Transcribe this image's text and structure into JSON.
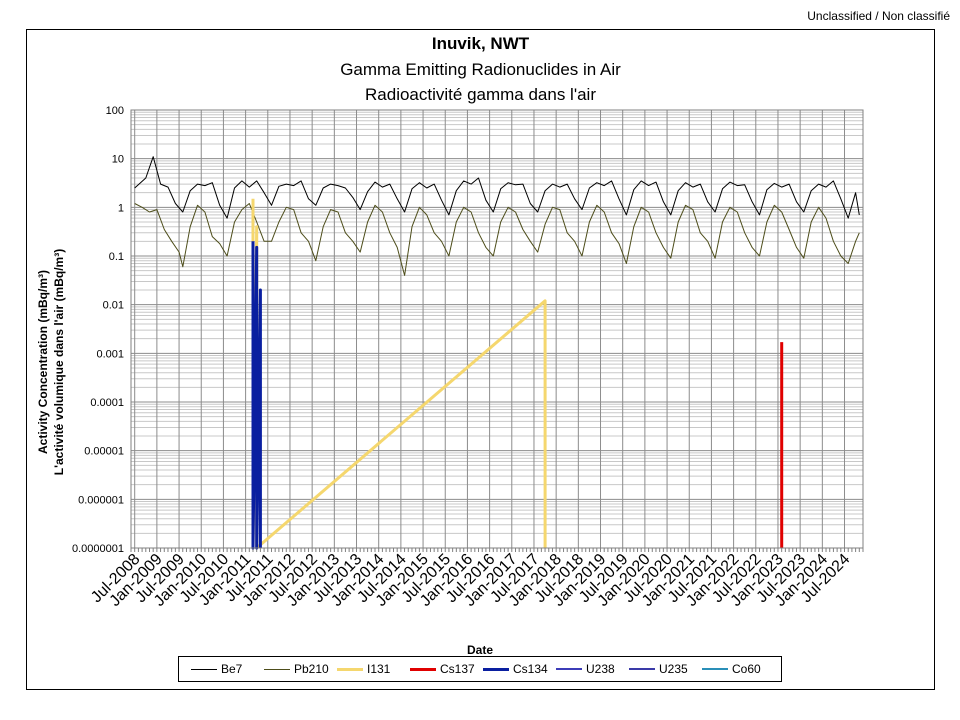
{
  "classification": "Unclassified / Non classifié",
  "chart_data": {
    "type": "line",
    "title": "Inuvik, NWT",
    "subtitle_en": "Gamma Emitting Radionuclides in Air",
    "subtitle_fr": "Radioactivité gamma dans l'air",
    "xlabel": "Date",
    "ylabel_en": "Activity Concentration  (mBq/m³)",
    "ylabel_fr": "L'activité volumique dans l'air (mBq/m³)",
    "y_scale": "log",
    "ylim": [
      1e-07,
      100
    ],
    "y_tick_labels": [
      "100",
      "10",
      "1",
      "0.1",
      "0.01",
      "0.001",
      "0.0001",
      "0.00001",
      "0.000001",
      "0.0000001"
    ],
    "x_range": [
      "2008-06",
      "2024-12"
    ],
    "x_tick_labels": [
      "Jul-2008",
      "Jan-2009",
      "Jul-2009",
      "Jan-2010",
      "Jul-2010",
      "Jan-2011",
      "Jul-2011",
      "Jan-2012",
      "Jul-2012",
      "Jan-2013",
      "Jul-2013",
      "Jan-2014",
      "Jul-2014",
      "Jan-2015",
      "Jul-2015",
      "Jan-2016",
      "Jul-2016",
      "Jan-2017",
      "Jul-2017",
      "Jan-2018",
      "Jul-2018",
      "Jan-2019",
      "Jul-2019",
      "Jan-2020",
      "Jul-2020",
      "Jan-2021",
      "Jul-2021",
      "Jan-2022",
      "Jul-2022",
      "Jan-2023",
      "Jul-2023",
      "Jan-2024",
      "Jul-2024"
    ],
    "grid": true,
    "legend_position": "bottom",
    "series": [
      {
        "name": "Be7",
        "color": "#000000",
        "width": 1,
        "points": [
          [
            "2008-07",
            2.5
          ],
          [
            "2008-10",
            4
          ],
          [
            "2008-12",
            11
          ],
          [
            "2009-02",
            3
          ],
          [
            "2009-04",
            2.6
          ],
          [
            "2009-06",
            1.2
          ],
          [
            "2009-08",
            0.8
          ],
          [
            "2009-10",
            2.2
          ],
          [
            "2009-12",
            3
          ],
          [
            "2010-02",
            2.8
          ],
          [
            "2010-04",
            3.2
          ],
          [
            "2010-06",
            1.1
          ],
          [
            "2010-08",
            0.6
          ],
          [
            "2010-10",
            2.5
          ],
          [
            "2010-12",
            3.5
          ],
          [
            "2011-02",
            2.6
          ],
          [
            "2011-04",
            3.5
          ],
          [
            "2011-06",
            2
          ],
          [
            "2011-08",
            1.1
          ],
          [
            "2011-10",
            2.7
          ],
          [
            "2011-12",
            3
          ],
          [
            "2012-02",
            2.8
          ],
          [
            "2012-04",
            3.5
          ],
          [
            "2012-06",
            1.5
          ],
          [
            "2012-08",
            1.1
          ],
          [
            "2012-10",
            2.5
          ],
          [
            "2012-12",
            3
          ],
          [
            "2013-02",
            2.8
          ],
          [
            "2013-04",
            2.5
          ],
          [
            "2013-06",
            1.6
          ],
          [
            "2013-08",
            0.9
          ],
          [
            "2013-10",
            2.1
          ],
          [
            "2013-12",
            3.3
          ],
          [
            "2014-02",
            2.6
          ],
          [
            "2014-04",
            3
          ],
          [
            "2014-06",
            1.5
          ],
          [
            "2014-08",
            0.8
          ],
          [
            "2014-10",
            2.4
          ],
          [
            "2014-12",
            3.2
          ],
          [
            "2015-02",
            2.5
          ],
          [
            "2015-04",
            3
          ],
          [
            "2015-06",
            1.4
          ],
          [
            "2015-08",
            0.7
          ],
          [
            "2015-10",
            2.2
          ],
          [
            "2015-12",
            3.5
          ],
          [
            "2016-02",
            3
          ],
          [
            "2016-04",
            4
          ],
          [
            "2016-06",
            1.4
          ],
          [
            "2016-08",
            0.8
          ],
          [
            "2016-10",
            2.4
          ],
          [
            "2016-12",
            3.2
          ],
          [
            "2017-02",
            2.9
          ],
          [
            "2017-04",
            3
          ],
          [
            "2017-06",
            1.2
          ],
          [
            "2017-08",
            0.8
          ],
          [
            "2017-10",
            2.2
          ],
          [
            "2017-12",
            3
          ],
          [
            "2018-02",
            2.6
          ],
          [
            "2018-04",
            3
          ],
          [
            "2018-06",
            1.5
          ],
          [
            "2018-08",
            0.9
          ],
          [
            "2018-10",
            2.5
          ],
          [
            "2018-12",
            3.2
          ],
          [
            "2019-02",
            2.8
          ],
          [
            "2019-04",
            3.5
          ],
          [
            "2019-06",
            1.5
          ],
          [
            "2019-08",
            0.7
          ],
          [
            "2019-10",
            2.3
          ],
          [
            "2019-12",
            3.5
          ],
          [
            "2020-02",
            2.8
          ],
          [
            "2020-04",
            3.3
          ],
          [
            "2020-06",
            1.3
          ],
          [
            "2020-08",
            0.7
          ],
          [
            "2020-10",
            2.2
          ],
          [
            "2020-12",
            3.2
          ],
          [
            "2021-02",
            2.6
          ],
          [
            "2021-04",
            3
          ],
          [
            "2021-06",
            1.3
          ],
          [
            "2021-08",
            0.8
          ],
          [
            "2021-10",
            2.4
          ],
          [
            "2021-12",
            3.3
          ],
          [
            "2022-02",
            2.8
          ],
          [
            "2022-04",
            2.9
          ],
          [
            "2022-06",
            1.3
          ],
          [
            "2022-08",
            0.7
          ],
          [
            "2022-10",
            2.3
          ],
          [
            "2022-12",
            3.1
          ],
          [
            "2023-02",
            2.6
          ],
          [
            "2023-04",
            3
          ],
          [
            "2023-06",
            1.3
          ],
          [
            "2023-08",
            0.8
          ],
          [
            "2023-10",
            2.2
          ],
          [
            "2023-12",
            3
          ],
          [
            "2024-02",
            2.6
          ],
          [
            "2024-04",
            3.5
          ],
          [
            "2024-06",
            1.5
          ],
          [
            "2024-08",
            0.6
          ],
          [
            "2024-10",
            2
          ],
          [
            "2024-11",
            0.7
          ]
        ]
      },
      {
        "name": "Pb210",
        "color": "#4d4d1a",
        "width": 1,
        "points": [
          [
            "2008-07",
            1.2
          ],
          [
            "2008-09",
            1
          ],
          [
            "2008-11",
            0.8
          ],
          [
            "2009-01",
            0.9
          ],
          [
            "2009-03",
            0.35
          ],
          [
            "2009-05",
            0.2
          ],
          [
            "2009-07",
            0.12
          ],
          [
            "2009-08",
            0.06
          ],
          [
            "2009-10",
            0.4
          ],
          [
            "2009-12",
            1.1
          ],
          [
            "2010-02",
            0.8
          ],
          [
            "2010-04",
            0.25
          ],
          [
            "2010-06",
            0.18
          ],
          [
            "2010-08",
            0.1
          ],
          [
            "2010-10",
            0.5
          ],
          [
            "2010-12",
            0.9
          ],
          [
            "2011-02",
            1.2
          ],
          [
            "2011-04",
            0.5
          ],
          [
            "2011-06",
            0.2
          ],
          [
            "2011-08",
            0.2
          ],
          [
            "2011-10",
            0.5
          ],
          [
            "2011-12",
            1
          ],
          [
            "2012-02",
            0.9
          ],
          [
            "2012-04",
            0.3
          ],
          [
            "2012-06",
            0.2
          ],
          [
            "2012-08",
            0.08
          ],
          [
            "2012-10",
            0.4
          ],
          [
            "2012-12",
            0.9
          ],
          [
            "2013-02",
            0.8
          ],
          [
            "2013-04",
            0.3
          ],
          [
            "2013-06",
            0.2
          ],
          [
            "2013-08",
            0.12
          ],
          [
            "2013-10",
            0.5
          ],
          [
            "2013-12",
            1.1
          ],
          [
            "2014-02",
            0.8
          ],
          [
            "2014-04",
            0.3
          ],
          [
            "2014-06",
            0.15
          ],
          [
            "2014-08",
            0.04
          ],
          [
            "2014-10",
            0.4
          ],
          [
            "2014-12",
            1
          ],
          [
            "2015-02",
            0.7
          ],
          [
            "2015-04",
            0.3
          ],
          [
            "2015-06",
            0.2
          ],
          [
            "2015-08",
            0.1
          ],
          [
            "2015-10",
            0.5
          ],
          [
            "2015-12",
            1
          ],
          [
            "2016-02",
            0.8
          ],
          [
            "2016-04",
            0.3
          ],
          [
            "2016-06",
            0.15
          ],
          [
            "2016-08",
            0.1
          ],
          [
            "2016-10",
            0.5
          ],
          [
            "2016-12",
            1
          ],
          [
            "2017-02",
            0.8
          ],
          [
            "2017-04",
            0.35
          ],
          [
            "2017-06",
            0.2
          ],
          [
            "2017-08",
            0.12
          ],
          [
            "2017-10",
            0.45
          ],
          [
            "2017-12",
            1
          ],
          [
            "2018-02",
            0.9
          ],
          [
            "2018-04",
            0.3
          ],
          [
            "2018-06",
            0.2
          ],
          [
            "2018-08",
            0.1
          ],
          [
            "2018-10",
            0.5
          ],
          [
            "2018-12",
            1.1
          ],
          [
            "2019-02",
            0.8
          ],
          [
            "2019-04",
            0.3
          ],
          [
            "2019-06",
            0.18
          ],
          [
            "2019-08",
            0.07
          ],
          [
            "2019-10",
            0.4
          ],
          [
            "2019-12",
            1
          ],
          [
            "2020-02",
            0.8
          ],
          [
            "2020-04",
            0.3
          ],
          [
            "2020-06",
            0.15
          ],
          [
            "2020-08",
            0.09
          ],
          [
            "2020-10",
            0.5
          ],
          [
            "2020-12",
            1.1
          ],
          [
            "2021-02",
            0.9
          ],
          [
            "2021-04",
            0.3
          ],
          [
            "2021-06",
            0.2
          ],
          [
            "2021-08",
            0.09
          ],
          [
            "2021-10",
            0.5
          ],
          [
            "2021-12",
            1
          ],
          [
            "2022-02",
            0.8
          ],
          [
            "2022-04",
            0.3
          ],
          [
            "2022-06",
            0.15
          ],
          [
            "2022-08",
            0.1
          ],
          [
            "2022-10",
            0.5
          ],
          [
            "2022-12",
            1.1
          ],
          [
            "2023-02",
            0.8
          ],
          [
            "2023-04",
            0.35
          ],
          [
            "2023-06",
            0.15
          ],
          [
            "2023-08",
            0.09
          ],
          [
            "2023-10",
            0.5
          ],
          [
            "2023-12",
            1
          ],
          [
            "2024-02",
            0.6
          ],
          [
            "2024-04",
            0.2
          ],
          [
            "2024-06",
            0.1
          ],
          [
            "2024-08",
            0.07
          ],
          [
            "2024-10",
            0.2
          ],
          [
            "2024-11",
            0.3
          ]
        ]
      },
      {
        "name": "I131",
        "color": "#f5d76e",
        "width": 3,
        "points": [
          [
            "2011-03",
            1.5
          ],
          [
            "2011-03",
            1e-07
          ],
          [
            "2011-04",
            0.4
          ],
          [
            "2011-04",
            1e-07
          ],
          [
            "2017-10",
            0.012
          ],
          [
            "2017-10",
            1e-07
          ]
        ]
      },
      {
        "name": "Cs137",
        "color": "#e00000",
        "width": 3,
        "points": [
          [
            "2023-02",
            0.0017
          ],
          [
            "2023-02",
            1e-07
          ]
        ]
      },
      {
        "name": "Cs134",
        "color": "#0a1fa0",
        "width": 3,
        "points": [
          [
            "2011-03",
            0.2
          ],
          [
            "2011-03",
            1e-07
          ],
          [
            "2011-04",
            0.15
          ],
          [
            "2011-04",
            1e-07
          ],
          [
            "2011-05",
            0.02
          ],
          [
            "2011-05",
            1e-07
          ]
        ]
      },
      {
        "name": "U238",
        "color": "#3c3cb8",
        "width": 2,
        "points": []
      },
      {
        "name": "U235",
        "color": "#3a3aa8",
        "width": 2,
        "points": [
          [
            "2011-04",
            0.1
          ],
          [
            "2011-04",
            1e-07
          ]
        ]
      },
      {
        "name": "Co60",
        "color": "#2a8fb8",
        "width": 2,
        "points": []
      }
    ]
  }
}
